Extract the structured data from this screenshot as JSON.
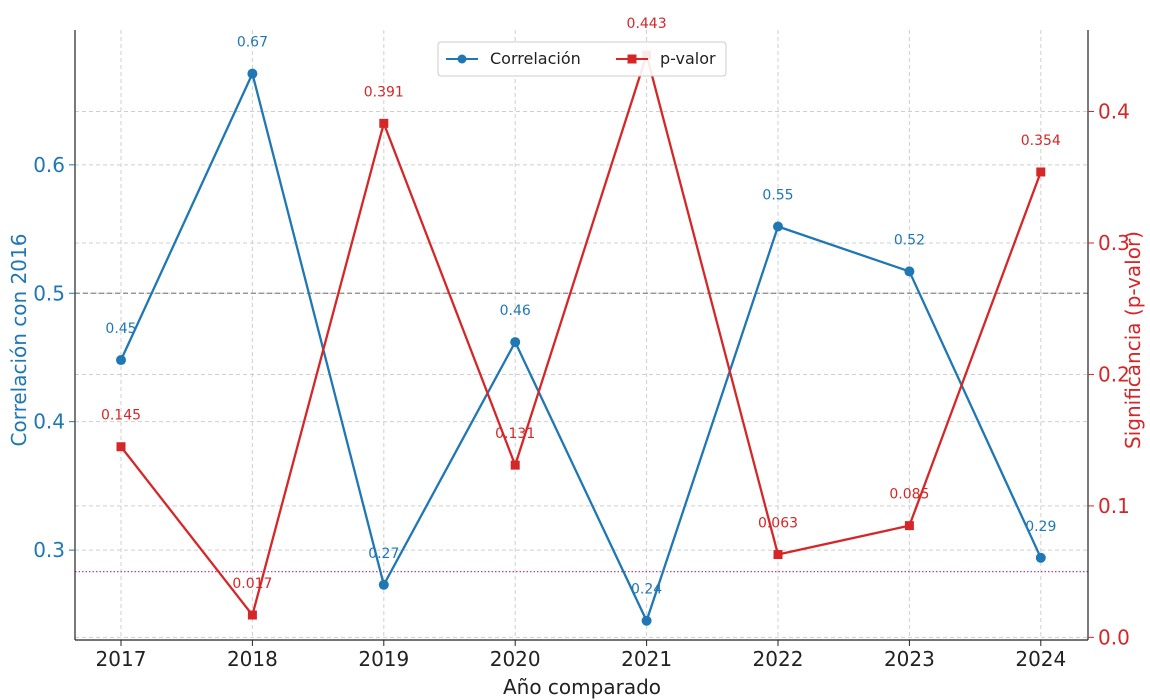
{
  "chart_data": {
    "type": "line",
    "xlabel": "Año comparado",
    "categories": [
      "2017",
      "2018",
      "2019",
      "2020",
      "2021",
      "2022",
      "2023",
      "2024"
    ],
    "y_left": {
      "label": "Correlación con 2016",
      "ylim": [
        0.23,
        0.705
      ],
      "ticks": [
        0.3,
        0.4,
        0.5,
        0.6
      ],
      "tick_labels": [
        "0.3",
        "0.4",
        "0.5",
        "0.6"
      ],
      "color": "#1f77b4"
    },
    "y_right": {
      "label": "Significancia (p-valor)",
      "ylim": [
        -0.002,
        0.462
      ],
      "ticks": [
        0.0,
        0.1,
        0.2,
        0.3,
        0.4
      ],
      "tick_labels": [
        "0.0",
        "0.1",
        "0.2",
        "0.3",
        "0.4"
      ],
      "color": "#d62728"
    },
    "series": [
      {
        "name": "Correlación",
        "axis": "left",
        "color": "#1f77b4",
        "marker": "circle",
        "values": [
          0.448,
          0.671,
          0.273,
          0.462,
          0.245,
          0.552,
          0.517,
          0.294
        ],
        "labels": [
          "0.45",
          "0.67",
          "0.27",
          "0.46",
          "0.24",
          "0.55",
          "0.52",
          "0.29"
        ]
      },
      {
        "name": "p-valor",
        "axis": "right",
        "color": "#d62728",
        "marker": "square",
        "values": [
          0.145,
          0.017,
          0.391,
          0.131,
          0.443,
          0.063,
          0.085,
          0.354
        ],
        "labels": [
          "0.145",
          "0.017",
          "0.391",
          "0.131",
          "0.443",
          "0.063",
          "0.085",
          "0.354"
        ]
      }
    ],
    "reference_lines": [
      {
        "axis": "left",
        "value": 0.5,
        "color": "#888888",
        "style": "dashed"
      },
      {
        "axis": "right",
        "value": 0.05,
        "color": "#b040c0",
        "style": "dotted"
      }
    ],
    "grid": true,
    "legend": {
      "position": "top-center",
      "entries": [
        "Correlación",
        "p-valor"
      ]
    }
  }
}
